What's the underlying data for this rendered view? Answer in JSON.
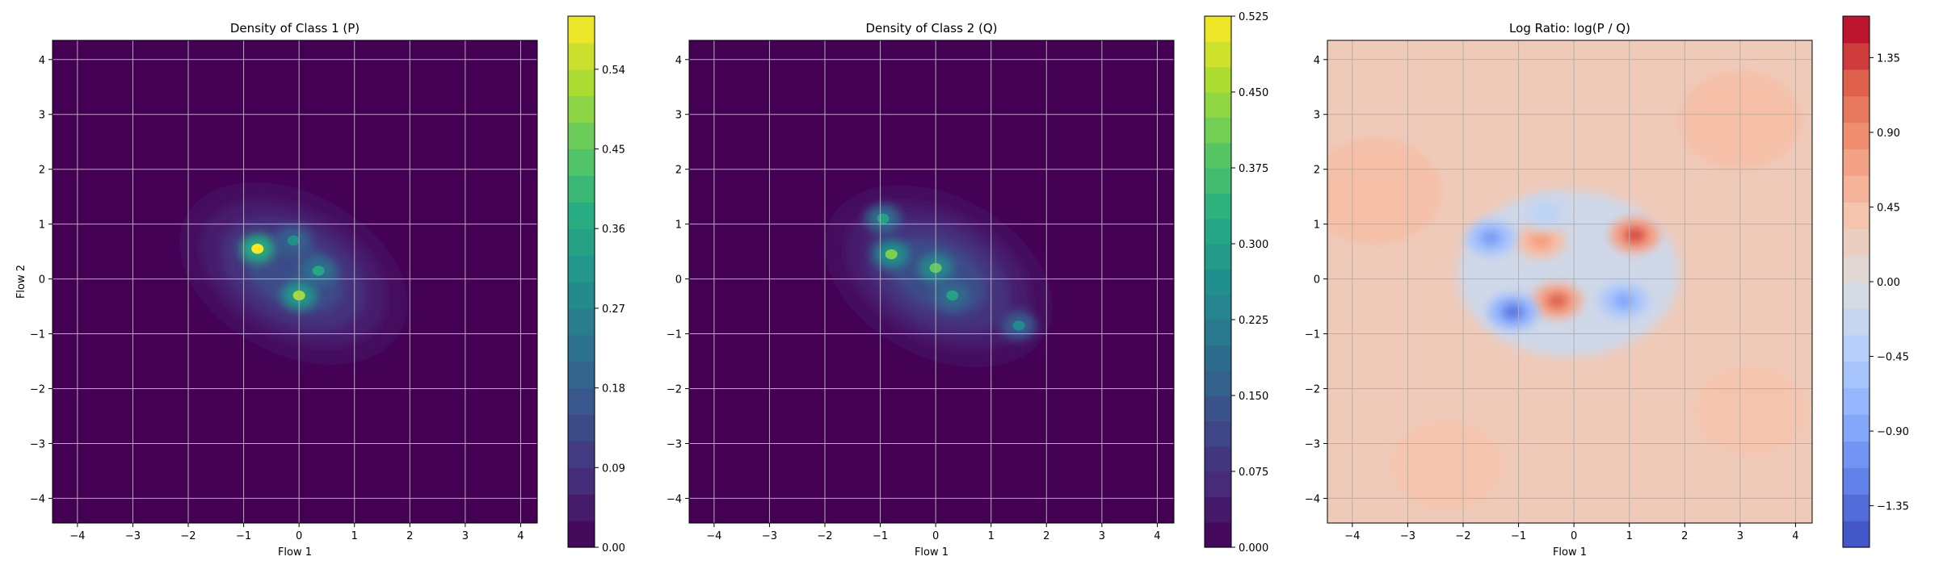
{
  "chart_data": [
    {
      "type": "heatmap",
      "title": "Density of Class 1 (P)",
      "xlabel": "Flow 1",
      "ylabel": "Flow 2",
      "xlim": [
        -4.45,
        4.3
      ],
      "ylim": [
        -4.45,
        4.35
      ],
      "xticks": [
        -4,
        -3,
        -2,
        -1,
        0,
        1,
        2,
        3,
        4
      ],
      "yticks": [
        -4,
        -3,
        -2,
        -1,
        0,
        1,
        2,
        3,
        4
      ],
      "grid": true,
      "colormap": "viridis",
      "colorbar": {
        "min": 0.0,
        "max": 0.6,
        "ticks": [
          "0.00",
          "0.09",
          "0.18",
          "0.27",
          "0.36",
          "0.45",
          "0.54"
        ],
        "levels": 20
      },
      "density_peaks": [
        {
          "x": -0.75,
          "y": 0.55,
          "value": 0.6
        },
        {
          "x": 0.0,
          "y": -0.3,
          "value": 0.52
        },
        {
          "x": 0.35,
          "y": 0.15,
          "value": 0.36
        },
        {
          "x": -0.1,
          "y": 0.7,
          "value": 0.3
        }
      ]
    },
    {
      "type": "heatmap",
      "title": "Density of Class 2 (Q)",
      "xlabel": "Flow 1",
      "ylabel": "",
      "xlim": [
        -4.45,
        4.3
      ],
      "ylim": [
        -4.45,
        4.35
      ],
      "xticks": [
        -4,
        -3,
        -2,
        -1,
        0,
        1,
        2,
        3,
        4
      ],
      "yticks": [
        -4,
        -3,
        -2,
        -1,
        0,
        1,
        2,
        3,
        4
      ],
      "grid": true,
      "colormap": "viridis",
      "colorbar": {
        "min": 0.0,
        "max": 0.525,
        "ticks": [
          "0.000",
          "0.075",
          "0.150",
          "0.225",
          "0.300",
          "0.375",
          "0.450",
          "0.525"
        ],
        "levels": 21
      },
      "density_peaks": [
        {
          "x": -0.8,
          "y": 0.45,
          "value": 0.42
        },
        {
          "x": 0.0,
          "y": 0.2,
          "value": 0.4
        },
        {
          "x": -0.95,
          "y": 1.1,
          "value": 0.3
        },
        {
          "x": 0.3,
          "y": -0.3,
          "value": 0.3
        },
        {
          "x": 1.5,
          "y": -0.85,
          "value": 0.25
        }
      ]
    },
    {
      "type": "heatmap",
      "title": "Log Ratio: log(P / Q)",
      "xlabel": "Flow 1",
      "ylabel": "",
      "xlim": [
        -4.45,
        4.3
      ],
      "ylim": [
        -4.45,
        4.35
      ],
      "xticks": [
        -4,
        -3,
        -2,
        -1,
        0,
        1,
        2,
        3,
        4
      ],
      "yticks": [
        -4,
        -3,
        -2,
        -1,
        0,
        1,
        2,
        3,
        4
      ],
      "grid": true,
      "colormap": "coolwarm",
      "colorbar": {
        "min": -1.6,
        "max": 1.6,
        "ticks": [
          "-1.35",
          "-0.90",
          "-0.45",
          "0.00",
          "0.45",
          "0.90",
          "1.35"
        ],
        "levels": 20
      },
      "features": [
        {
          "x": 1.1,
          "y": 0.8,
          "value": 1.3
        },
        {
          "x": -0.3,
          "y": -0.4,
          "value": 1.2
        },
        {
          "x": -0.6,
          "y": 0.7,
          "value": 0.8
        },
        {
          "x": -1.1,
          "y": -0.6,
          "value": -1.3
        },
        {
          "x": -1.5,
          "y": 0.75,
          "value": -1.0
        },
        {
          "x": 0.9,
          "y": -0.4,
          "value": -0.9
        },
        {
          "x": -0.5,
          "y": 1.2,
          "value": -0.4
        }
      ]
    }
  ]
}
